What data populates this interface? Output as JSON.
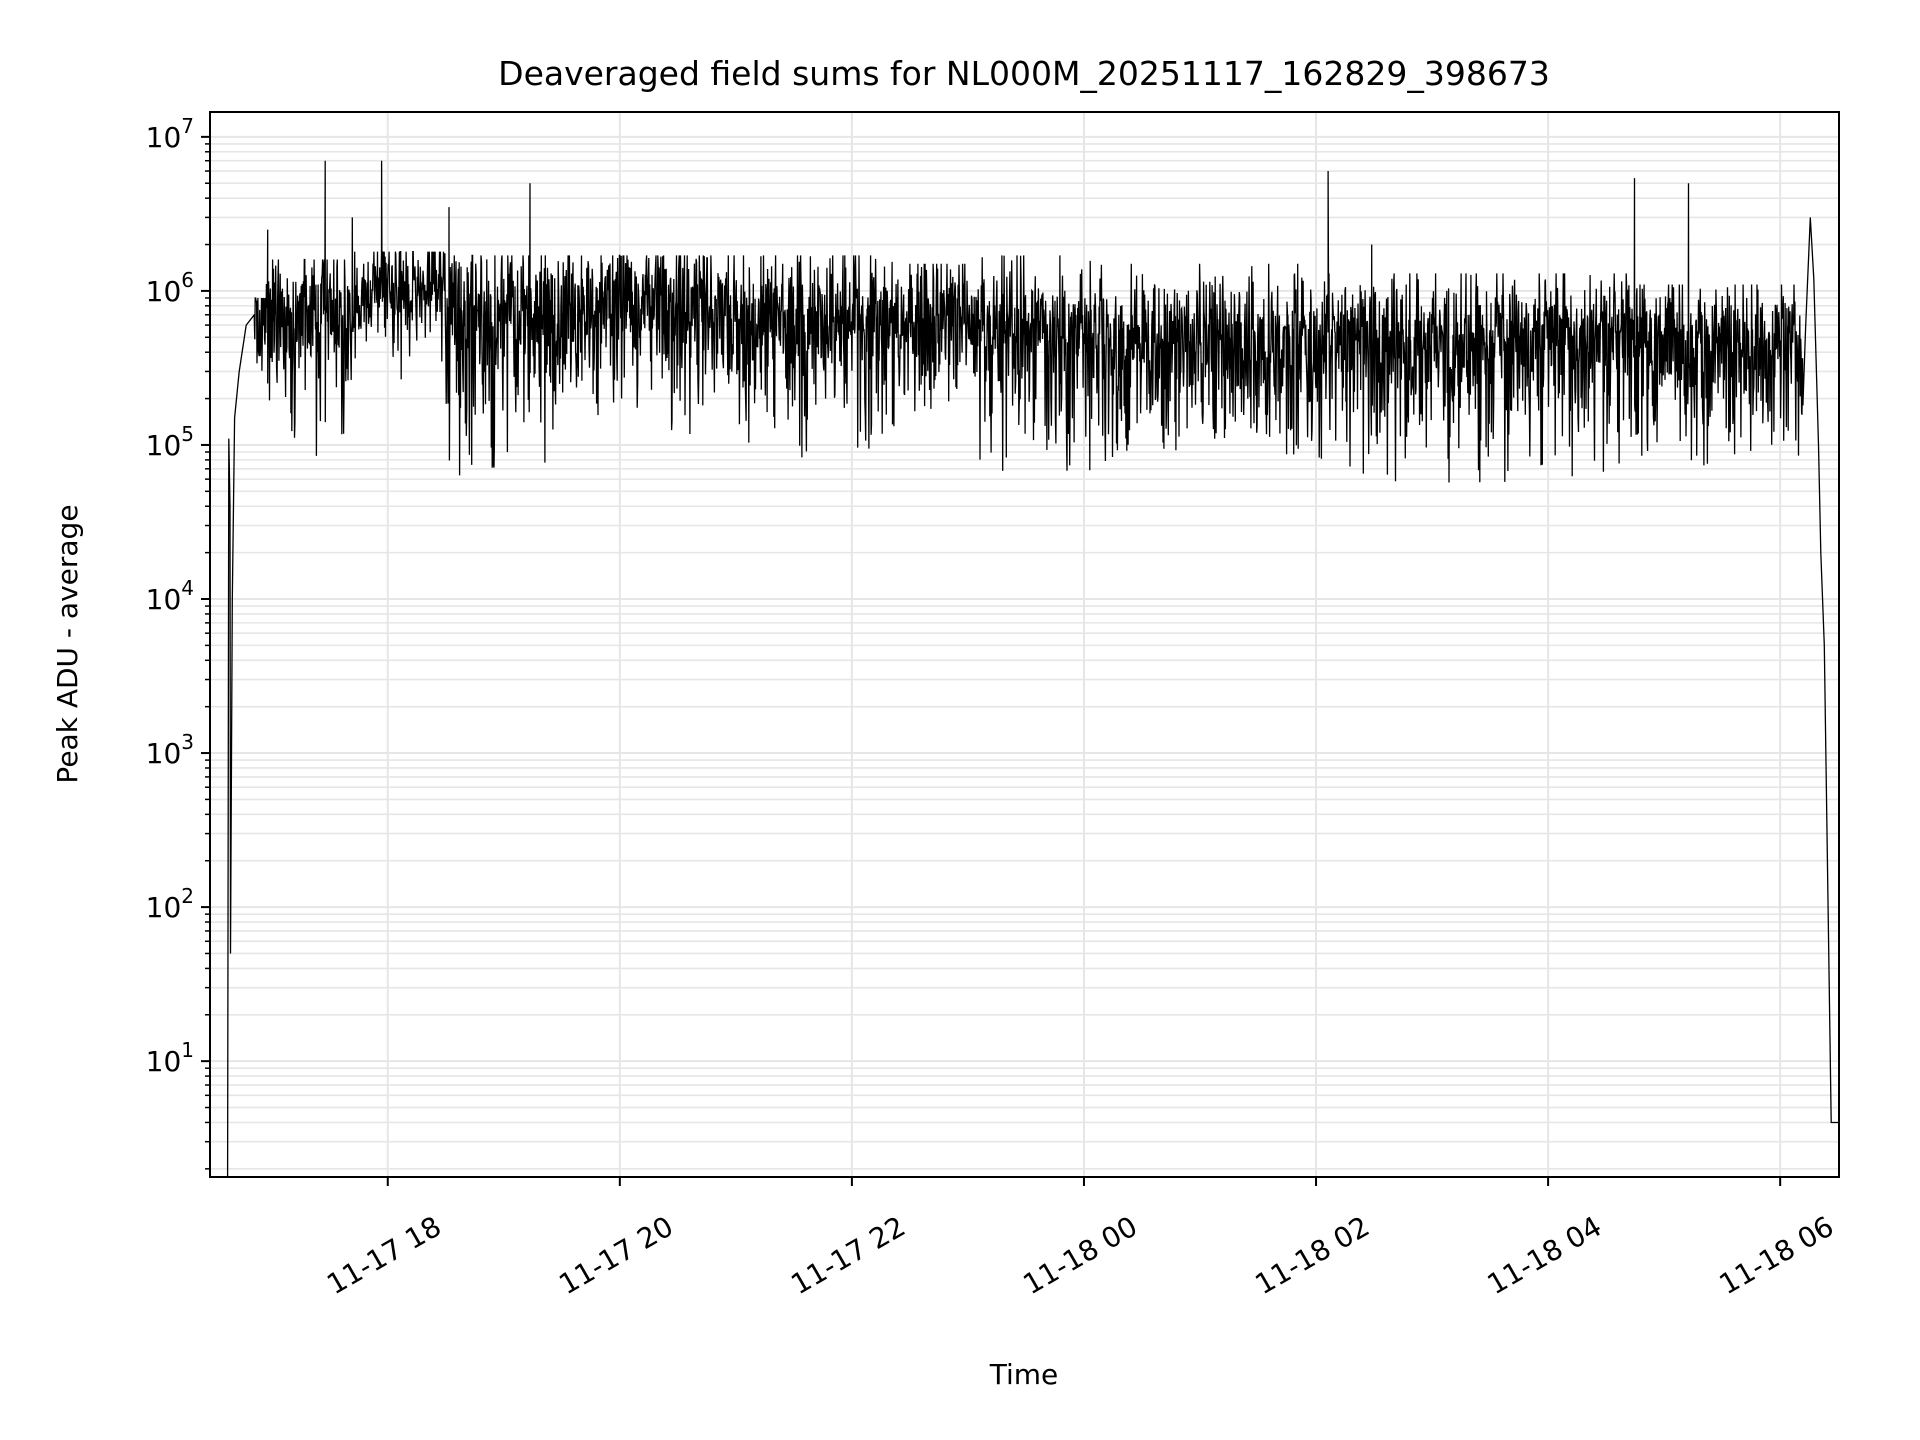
{
  "chart_data": {
    "type": "line",
    "title": "Deaveraged field sums for NL000M_20251117_162829_398673",
    "xlabel": "Time",
    "ylabel": "Peak ADU - average",
    "yscale": "log",
    "ylim": [
      1.77,
      14500000
    ],
    "x_units": "hours since 2025-11-17 00:00",
    "xlim": [
      16.468,
      30.507
    ],
    "grid": true,
    "line_color": "#000000",
    "grid_color": "#e6e6e6",
    "x_ticks": [
      {
        "t": 18,
        "label": "11-17 18"
      },
      {
        "t": 20,
        "label": "11-17 20"
      },
      {
        "t": 22,
        "label": "11-17 22"
      },
      {
        "t": 24,
        "label": "11-18 00"
      },
      {
        "t": 26,
        "label": "11-18 02"
      },
      {
        "t": 28,
        "label": "11-18 04"
      },
      {
        "t": 30,
        "label": "11-18 06"
      }
    ],
    "y_ticks": [
      {
        "v": 10,
        "base": "10",
        "exp": "1"
      },
      {
        "v": 100,
        "base": "10",
        "exp": "2"
      },
      {
        "v": 1000,
        "base": "10",
        "exp": "3"
      },
      {
        "v": 10000,
        "base": "10",
        "exp": "4"
      },
      {
        "v": 100000,
        "base": "10",
        "exp": "5"
      },
      {
        "v": 1000000,
        "base": "10",
        "exp": "6"
      },
      {
        "v": 10000000,
        "base": "10",
        "exp": "7"
      }
    ],
    "ramp_start": [
      [
        16.62,
        1.8
      ],
      [
        16.63,
        110000
      ],
      [
        16.64,
        40000
      ],
      [
        16.645,
        50
      ],
      [
        16.66,
        10000
      ],
      [
        16.68,
        150000
      ],
      [
        16.72,
        300000
      ],
      [
        16.78,
        600000
      ],
      [
        16.85,
        700000
      ]
    ],
    "segments": [
      {
        "t0": 16.85,
        "t1": 16.95,
        "upper": 900000,
        "typical": 650000,
        "lower": 300000
      },
      {
        "t0": 16.95,
        "t1": 17.7,
        "upper": 1600000,
        "typical": 800000,
        "lower": 80000
      },
      {
        "t0": 17.7,
        "t1": 18.5,
        "upper": 1800000,
        "typical": 1100000,
        "lower": 400000
      },
      {
        "t0": 18.5,
        "t1": 19.5,
        "upper": 1700000,
        "typical": 800000,
        "lower": 60000
      },
      {
        "t0": 19.5,
        "t1": 20.4,
        "upper": 1700000,
        "typical": 900000,
        "lower": 150000
      },
      {
        "t0": 20.4,
        "t1": 20.9,
        "upper": 1700000,
        "typical": 800000,
        "lower": 100000
      },
      {
        "t0": 20.9,
        "t1": 22.5,
        "upper": 1700000,
        "typical": 700000,
        "lower": 70000
      },
      {
        "t0": 22.5,
        "t1": 23.1,
        "upper": 1500000,
        "typical": 700000,
        "lower": 150000
      },
      {
        "t0": 23.1,
        "t1": 24.2,
        "upper": 1700000,
        "typical": 600000,
        "lower": 60000
      },
      {
        "t0": 24.2,
        "t1": 26.0,
        "upper": 1500000,
        "typical": 500000,
        "lower": 80000
      },
      {
        "t0": 26.0,
        "t1": 28.7,
        "upper": 1300000,
        "typical": 500000,
        "lower": 55000
      },
      {
        "t0": 28.7,
        "t1": 30.2,
        "upper": 1100000,
        "typical": 500000,
        "lower": 70000
      }
    ],
    "spikes": [
      [
        16.965,
        2500000
      ],
      [
        17.461,
        7000000
      ],
      [
        17.694,
        3000000
      ],
      [
        17.947,
        7000000
      ],
      [
        18.528,
        3500000
      ],
      [
        19.226,
        5000000
      ],
      [
        26.104,
        6000000
      ],
      [
        26.48,
        2000000
      ],
      [
        28.745,
        5400000
      ],
      [
        29.21,
        5000000
      ]
    ],
    "end_drop": [
      [
        30.22,
        600000
      ],
      [
        30.26,
        3000000
      ],
      [
        30.29,
        1200000
      ],
      [
        30.33,
        100000
      ],
      [
        30.35,
        20000
      ],
      [
        30.38,
        5000
      ],
      [
        30.44,
        4
      ],
      [
        30.507,
        4
      ]
    ]
  }
}
